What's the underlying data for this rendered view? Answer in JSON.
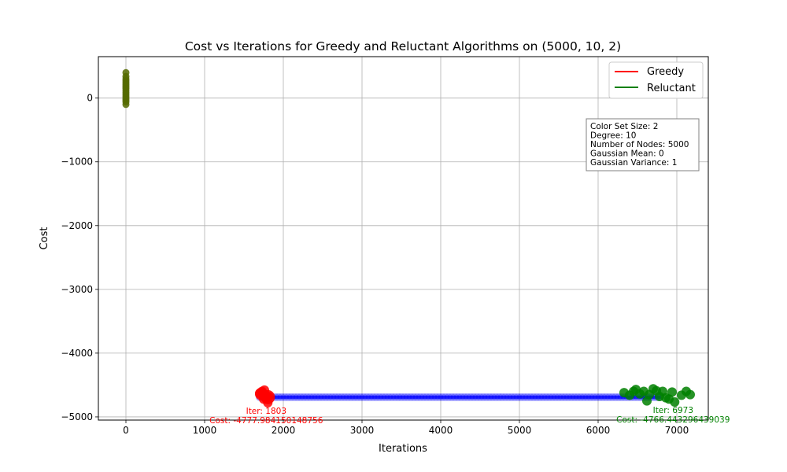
{
  "chart_data": {
    "type": "scatter",
    "title": "Cost vs Iterations for Greedy and Reluctant Algorithms on (5000, 10, 2)",
    "xlabel": "Iterations",
    "ylabel": "Cost",
    "xlim": [
      -350,
      7400
    ],
    "ylim": [
      -5050,
      650
    ],
    "xticks": [
      0,
      1000,
      2000,
      3000,
      4000,
      5000,
      6000,
      7000
    ],
    "xtick_labels": [
      "0",
      "1000",
      "2000",
      "3000",
      "4000",
      "5000",
      "6000",
      "7000"
    ],
    "yticks": [
      0,
      -1000,
      -2000,
      -3000,
      -4000,
      -5000
    ],
    "ytick_labels": [
      "0",
      "−1000",
      "−2000",
      "−3000",
      "−4000",
      "−5000"
    ],
    "grid": true,
    "legend_position": "top-right",
    "legend": [
      {
        "label": "Greedy",
        "color": "#ff0000"
      },
      {
        "label": "Reluctant",
        "color": "#008000"
      }
    ],
    "colors": {
      "greedy": "#ff0000",
      "reluctant": "#008000",
      "start_cluster": "#556b00",
      "path": "#0000ff"
    },
    "series": [
      {
        "name": "Greedy",
        "color": "#ff0000",
        "points": [
          [
            1700,
            -4630
          ],
          [
            1730,
            -4600
          ],
          [
            1760,
            -4580
          ],
          [
            1770,
            -4650
          ],
          [
            1790,
            -4700
          ],
          [
            1810,
            -4680
          ],
          [
            1750,
            -4720
          ],
          [
            1803,
            -4777
          ]
        ]
      },
      {
        "name": "Reluctant",
        "color": "#008000",
        "points": [
          [
            6330,
            -4620
          ],
          [
            6400,
            -4660
          ],
          [
            6450,
            -4600
          ],
          [
            6480,
            -4570
          ],
          [
            6530,
            -4640
          ],
          [
            6580,
            -4600
          ],
          [
            6620,
            -4750
          ],
          [
            6650,
            -4650
          ],
          [
            6700,
            -4560
          ],
          [
            6740,
            -4590
          ],
          [
            6780,
            -4680
          ],
          [
            6820,
            -4600
          ],
          [
            6860,
            -4700
          ],
          [
            6900,
            -4720
          ],
          [
            6940,
            -4610
          ],
          [
            6973,
            -4766
          ],
          [
            7060,
            -4660
          ],
          [
            7120,
            -4600
          ],
          [
            7170,
            -4650
          ]
        ]
      },
      {
        "name": "",
        "color": "#556b00",
        "points": [
          [
            0,
            400
          ],
          [
            0,
            340
          ],
          [
            0,
            300
          ],
          [
            0,
            270
          ],
          [
            0,
            240
          ],
          [
            0,
            210
          ],
          [
            0,
            180
          ],
          [
            0,
            150
          ],
          [
            0,
            120
          ],
          [
            0,
            90
          ],
          [
            0,
            60
          ],
          [
            0,
            30
          ],
          [
            0,
            0
          ],
          [
            0,
            -30
          ],
          [
            0,
            -60
          ],
          [
            0,
            -100
          ]
        ]
      }
    ],
    "path": {
      "x_start": 1700,
      "x_end": 6800,
      "y": -4690,
      "step": 40
    },
    "annotations": [
      {
        "lines": [
          "Iter: 1803",
          "Cost: -4777.984150148756"
        ],
        "color": "#ff0000",
        "x": 1803,
        "y": -4777
      },
      {
        "lines": [
          "Iter: 6973",
          "Cost: -4766.443296439039"
        ],
        "color": "#008000",
        "x": 6973,
        "y": -4766
      }
    ],
    "info_box": {
      "lines": [
        "Color Set Size: 2",
        "Degree: 10",
        "Number of Nodes: 5000",
        "Gaussian Mean: 0",
        "Gaussian Variance: 1"
      ]
    }
  }
}
